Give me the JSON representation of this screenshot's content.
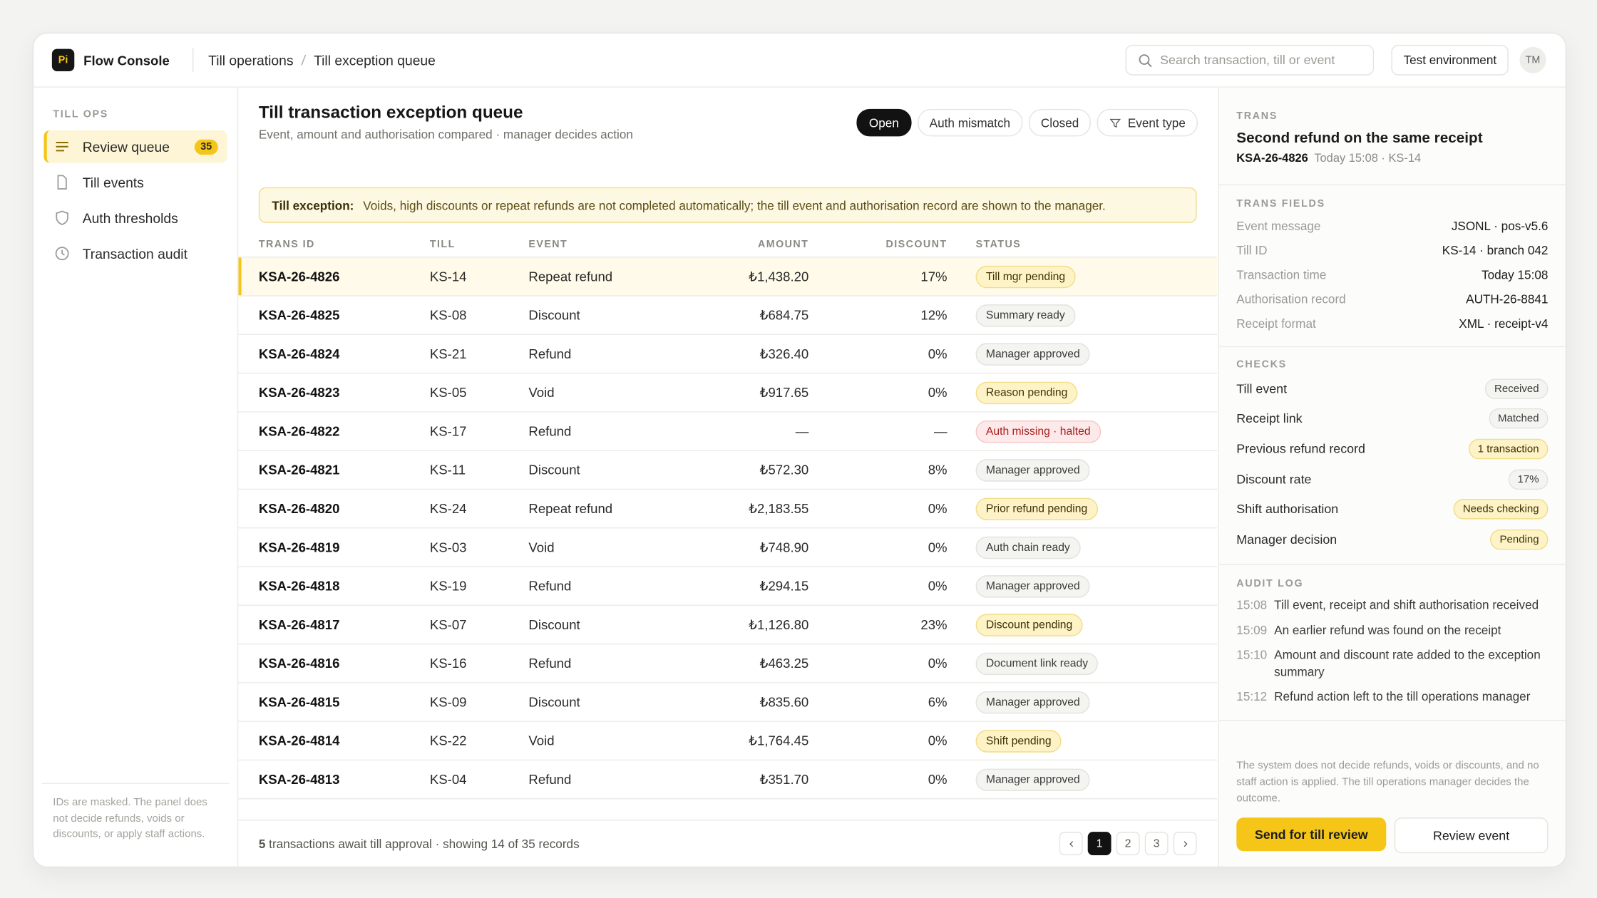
{
  "app": {
    "logo": "Pi",
    "name": "Flow Console"
  },
  "breadcrumb": [
    "Till operations",
    "Till exception queue"
  ],
  "search": {
    "placeholder": "Search transaction, till or event"
  },
  "environment": "Test environment",
  "avatar": "TM",
  "sidebar": {
    "section": "TILL OPS",
    "items": [
      {
        "label": "Review queue",
        "badge": "35"
      },
      {
        "label": "Till events"
      },
      {
        "label": "Auth thresholds"
      },
      {
        "label": "Transaction audit"
      }
    ],
    "footnote": "IDs are masked. The panel does not decide refunds, voids or discounts, or apply staff actions."
  },
  "queue": {
    "title": "Till transaction exception queue",
    "subtitle": "Event, amount and authorisation compared · manager decides action",
    "filters": [
      "Open",
      "Auth mismatch",
      "Closed",
      "Event type"
    ],
    "alert": {
      "label": "Till exception:",
      "text": "Voids, high discounts or repeat refunds are not completed automatically; the till event and authorisation record are shown to the manager."
    },
    "table": {
      "columns": [
        "TRANS ID",
        "TILL",
        "EVENT",
        "AMOUNT",
        "DISCOUNT",
        "STATUS"
      ],
      "rows": [
        {
          "id": "KSA-26-4826",
          "till": "KS-14",
          "event": "Repeat refund",
          "amount": "₺1,438.20",
          "discount": "17%",
          "status": "Till mgr pending",
          "tone": "warn"
        },
        {
          "id": "KSA-26-4825",
          "till": "KS-08",
          "event": "Discount",
          "amount": "₺684.75",
          "discount": "12%",
          "status": "Summary ready",
          "tone": "neutral"
        },
        {
          "id": "KSA-26-4824",
          "till": "KS-21",
          "event": "Refund",
          "amount": "₺326.40",
          "discount": "0%",
          "status": "Manager approved",
          "tone": "neutral"
        },
        {
          "id": "KSA-26-4823",
          "till": "KS-05",
          "event": "Void",
          "amount": "₺917.65",
          "discount": "0%",
          "status": "Reason pending",
          "tone": "warn"
        },
        {
          "id": "KSA-26-4822",
          "till": "KS-17",
          "event": "Refund",
          "amount": "—",
          "discount": "—",
          "status": "Auth missing · halted",
          "tone": "error"
        },
        {
          "id": "KSA-26-4821",
          "till": "KS-11",
          "event": "Discount",
          "amount": "₺572.30",
          "discount": "8%",
          "status": "Manager approved",
          "tone": "neutral"
        },
        {
          "id": "KSA-26-4820",
          "till": "KS-24",
          "event": "Repeat refund",
          "amount": "₺2,183.55",
          "discount": "0%",
          "status": "Prior refund pending",
          "tone": "warn"
        },
        {
          "id": "KSA-26-4819",
          "till": "KS-03",
          "event": "Void",
          "amount": "₺748.90",
          "discount": "0%",
          "status": "Auth chain ready",
          "tone": "neutral"
        },
        {
          "id": "KSA-26-4818",
          "till": "KS-19",
          "event": "Refund",
          "amount": "₺294.15",
          "discount": "0%",
          "status": "Manager approved",
          "tone": "neutral"
        },
        {
          "id": "KSA-26-4817",
          "till": "KS-07",
          "event": "Discount",
          "amount": "₺1,126.80",
          "discount": "23%",
          "status": "Discount pending",
          "tone": "warn"
        },
        {
          "id": "KSA-26-4816",
          "till": "KS-16",
          "event": "Refund",
          "amount": "₺463.25",
          "discount": "0%",
          "status": "Document link ready",
          "tone": "neutral"
        },
        {
          "id": "KSA-26-4815",
          "till": "KS-09",
          "event": "Discount",
          "amount": "₺835.60",
          "discount": "6%",
          "status": "Manager approved",
          "tone": "neutral"
        },
        {
          "id": "KSA-26-4814",
          "till": "KS-22",
          "event": "Void",
          "amount": "₺1,764.45",
          "discount": "0%",
          "status": "Shift pending",
          "tone": "warn"
        },
        {
          "id": "KSA-26-4813",
          "till": "KS-04",
          "event": "Refund",
          "amount": "₺351.70",
          "discount": "0%",
          "status": "Manager approved",
          "tone": "neutral"
        }
      ]
    },
    "footer": {
      "count": "5",
      "text": "transactions await till approval · showing 14 of 35 records"
    },
    "pages": [
      "1",
      "2",
      "3"
    ]
  },
  "detail": {
    "section": "TRANS",
    "title": "Second refund on the same receipt",
    "id": "KSA-26-4826",
    "meta": "Today 15:08 · KS-14",
    "fields_section": "TRANS FIELDS",
    "fields": [
      [
        "Event message",
        "JSONL · pos-v5.6"
      ],
      [
        "Till ID",
        "KS-14 · branch 042"
      ],
      [
        "Transaction time",
        "Today 15:08"
      ],
      [
        "Authorisation record",
        "AUTH-26-8841"
      ],
      [
        "Receipt format",
        "XML · receipt-v4"
      ]
    ],
    "checks_section": "CHECKS",
    "checks": [
      {
        "label": "Till event",
        "value": "Received",
        "tone": "neutral"
      },
      {
        "label": "Receipt link",
        "value": "Matched",
        "tone": "neutral"
      },
      {
        "label": "Previous refund record",
        "value": "1 transaction",
        "tone": "warn"
      },
      {
        "label": "Discount rate",
        "value": "17%",
        "tone": "neutral"
      },
      {
        "label": "Shift authorisation",
        "value": "Needs checking",
        "tone": "warn"
      },
      {
        "label": "Manager decision",
        "value": "Pending",
        "tone": "warn"
      }
    ],
    "log_section": "AUDIT LOG",
    "log": [
      [
        "15:08",
        "Till event, receipt and shift authorisation received"
      ],
      [
        "15:09",
        "An earlier refund was found on the receipt"
      ],
      [
        "15:10",
        "Amount and discount rate added to the exception summary"
      ],
      [
        "15:12",
        "Refund action left to the till operations manager"
      ]
    ],
    "note": "The system does not decide refunds, voids or discounts, and no staff action is applied. The till operations manager decides the outcome.",
    "actions": [
      "Send for till review",
      "Review event"
    ]
  }
}
